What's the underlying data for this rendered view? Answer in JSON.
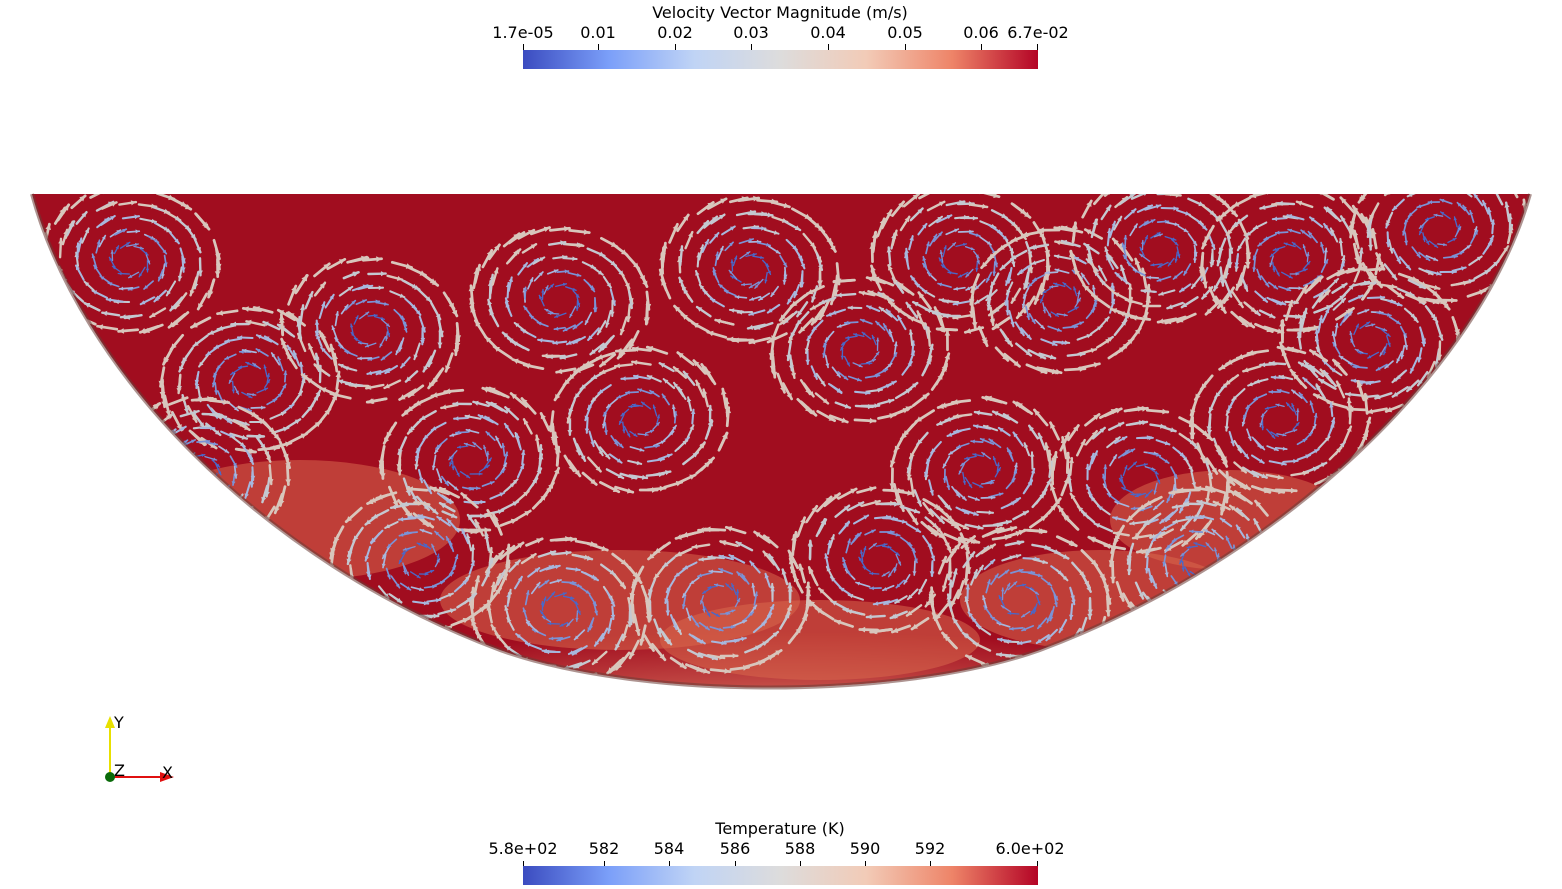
{
  "velocity_legend": {
    "title": "Velocity Vector Magnitude (m/s)",
    "ticks": [
      "1.7e-05",
      "0.01",
      "0.02",
      "0.03",
      "0.04",
      "0.05",
      "0.06",
      "6.7e-02"
    ],
    "colormap": [
      "#3b4cc0",
      "#7b9ff9",
      "#c0d4f5",
      "#dddcdc",
      "#f2cbb7",
      "#ee8468",
      "#b40426"
    ]
  },
  "temperature_legend": {
    "title": "Temperature (K)",
    "ticks": [
      "5.8e+02",
      "582",
      "584",
      "586",
      "588",
      "590",
      "592",
      "6.0e+02"
    ],
    "colormap": [
      "#3b4cc0",
      "#7b9ff9",
      "#c0d4f5",
      "#dddcdc",
      "#f2cbb7",
      "#ee8468",
      "#b40426"
    ]
  },
  "axes": {
    "x_label": "X",
    "y_label": "Y",
    "z_label": "Z",
    "x_color": "#e01010",
    "y_color": "#e8e000",
    "z_color": "#0a6a0a"
  },
  "scene": {
    "hot_color": "#a10d1f",
    "mid_color": "#d8684d",
    "arrow_colors": [
      "#4a68c8",
      "#7b93d6",
      "#a7b7dd",
      "#c4c8d0",
      "#d8c6bc"
    ]
  }
}
